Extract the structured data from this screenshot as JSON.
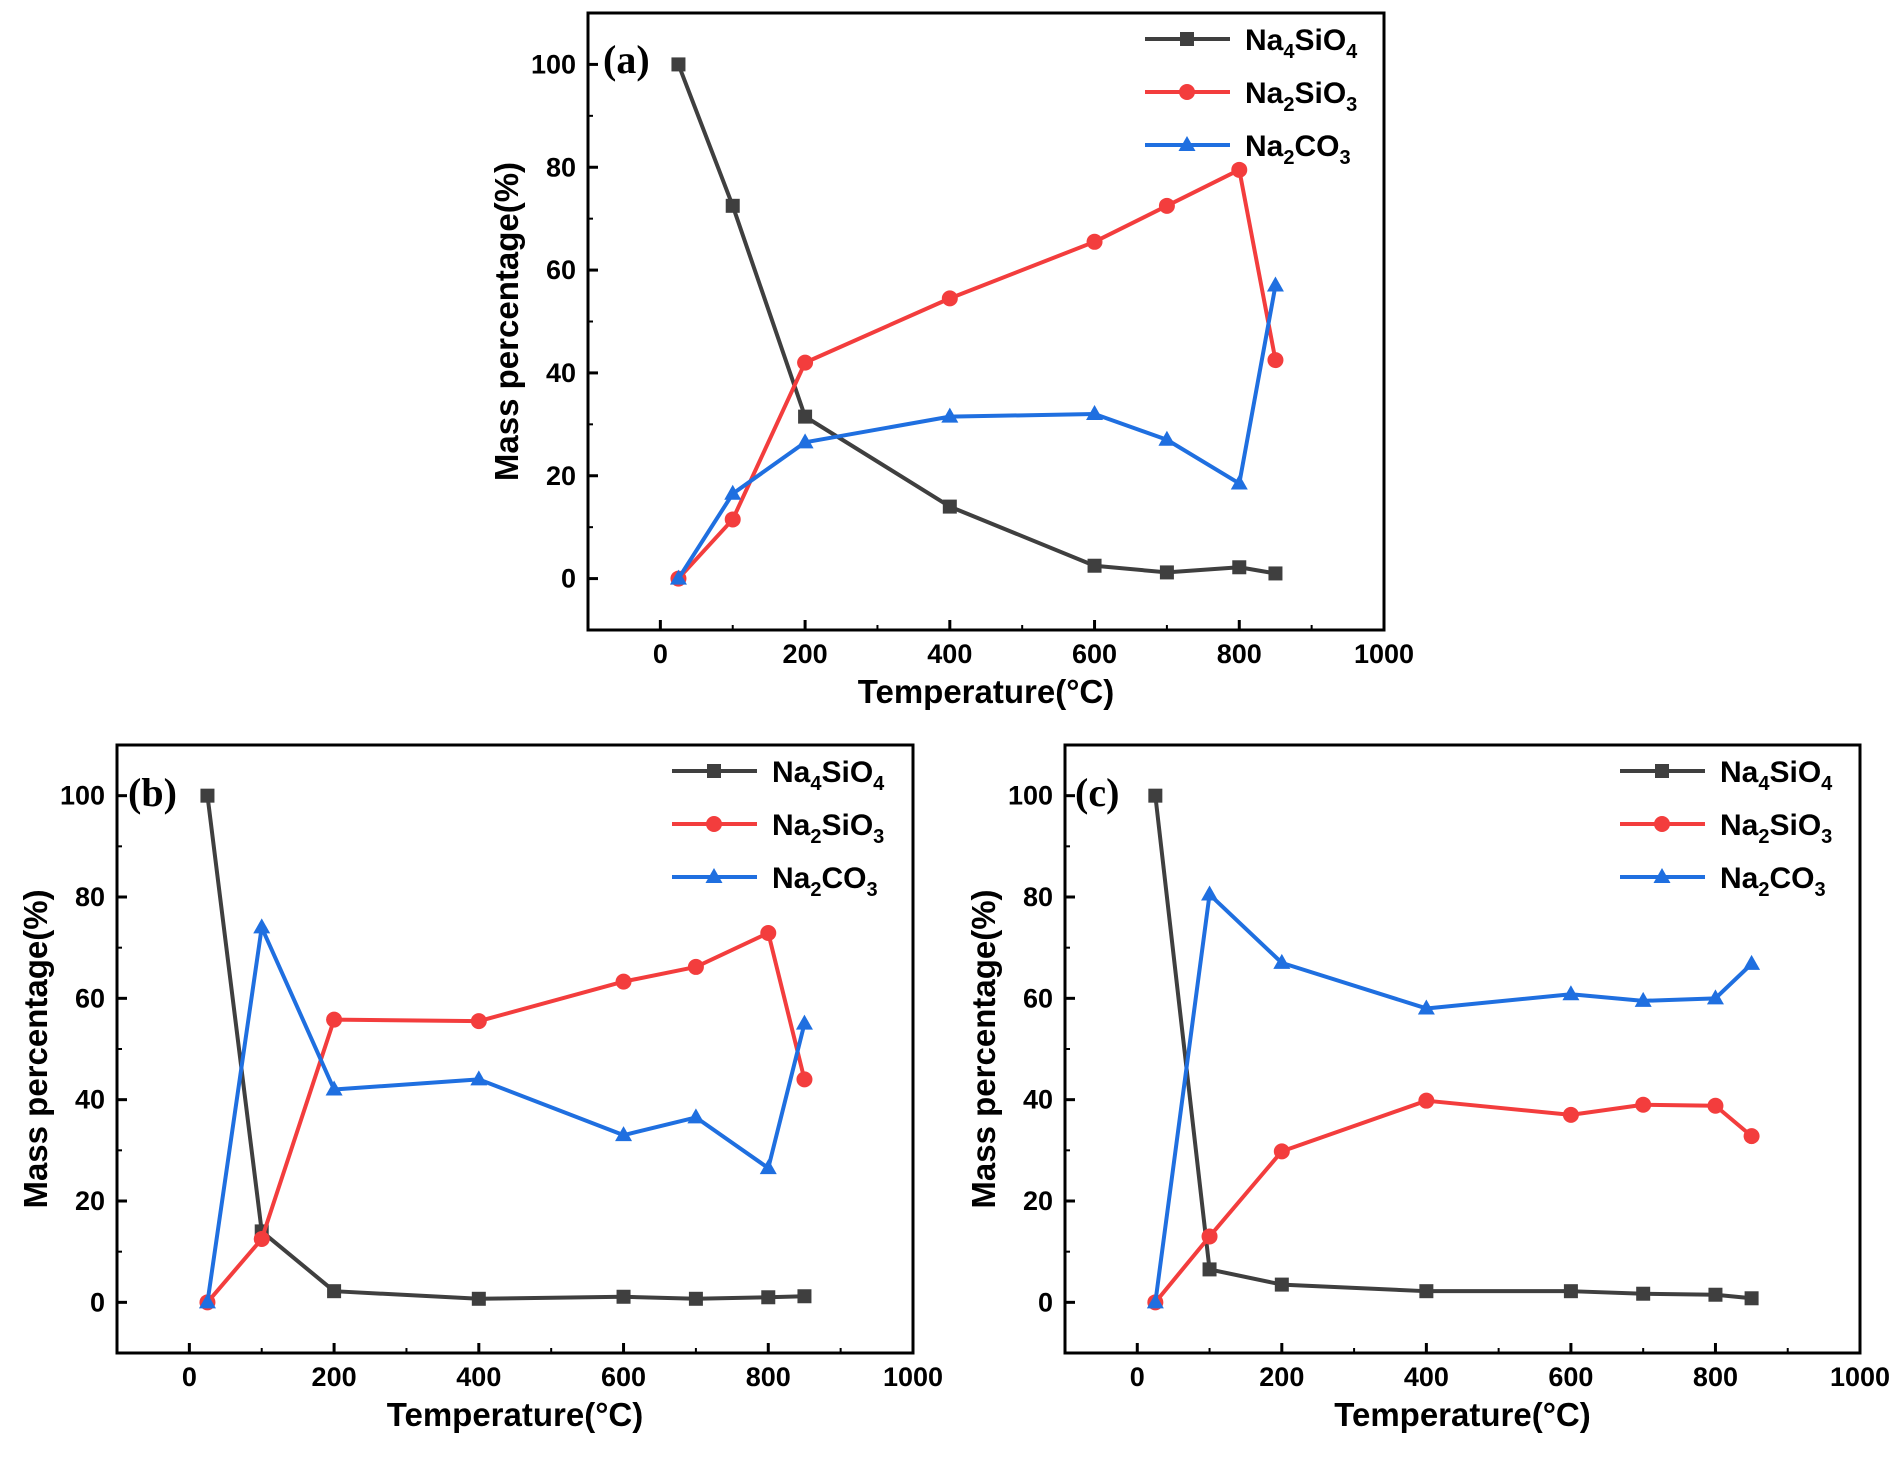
{
  "chart_data": [
    {
      "type": "line",
      "panel": "(a)",
      "xlabel": "Temperature(°C)",
      "ylabel": "Mass percentage(%)",
      "xlim": [
        -100,
        1000
      ],
      "ylim": [
        -10,
        110
      ],
      "xticks": [
        0,
        200,
        400,
        600,
        800,
        1000
      ],
      "yticks": [
        0,
        20,
        40,
        60,
        80,
        100
      ],
      "legend": "top-right",
      "series": [
        {
          "name": "Na4SiO4",
          "sub1": "4",
          "sub2": "4",
          "color": "#3f3f3f",
          "marker": "square",
          "x": [
            25,
            100,
            200,
            400,
            600,
            700,
            800,
            850
          ],
          "y": [
            100,
            72.5,
            31.5,
            14,
            2.5,
            1.2,
            2.2,
            1
          ]
        },
        {
          "name": "Na2SiO3",
          "sub1": "2",
          "sub2": "3",
          "color": "#f33d3d",
          "marker": "circle",
          "x": [
            25,
            100,
            200,
            400,
            600,
            700,
            800,
            850
          ],
          "y": [
            0,
            11.5,
            42,
            54.5,
            65.5,
            72.5,
            79.5,
            42.5
          ]
        },
        {
          "name": "Na2CO3",
          "sub1": "2",
          "sub2": "3",
          "color": "#1f6fe0",
          "marker": "triangle",
          "x": [
            25,
            100,
            200,
            400,
            600,
            700,
            800,
            850
          ],
          "y": [
            0,
            16.5,
            26.5,
            31.5,
            32,
            27,
            18.5,
            57
          ]
        }
      ]
    },
    {
      "type": "line",
      "panel": "(b)",
      "xlabel": "Temperature(°C)",
      "ylabel": "Mass percentage(%)",
      "xlim": [
        -100,
        1000
      ],
      "ylim": [
        -10,
        110
      ],
      "xticks": [
        0,
        200,
        400,
        600,
        800,
        1000
      ],
      "yticks": [
        0,
        20,
        40,
        60,
        80,
        100
      ],
      "legend": "top-right",
      "series": [
        {
          "name": "Na4SiO4",
          "sub1": "4",
          "sub2": "4",
          "color": "#3f3f3f",
          "marker": "square",
          "x": [
            25,
            100,
            200,
            400,
            600,
            700,
            800,
            850
          ],
          "y": [
            100,
            14,
            2.2,
            0.7,
            1.1,
            0.7,
            1,
            1.2
          ]
        },
        {
          "name": "Na2SiO3",
          "sub1": "2",
          "sub2": "3",
          "color": "#f33d3d",
          "marker": "circle",
          "x": [
            25,
            100,
            200,
            400,
            600,
            700,
            800,
            850
          ],
          "y": [
            0,
            12.5,
            55.8,
            55.5,
            63.3,
            66.2,
            72.9,
            44
          ]
        },
        {
          "name": "Na2CO3",
          "sub1": "2",
          "sub2": "3",
          "color": "#1f6fe0",
          "marker": "triangle",
          "x": [
            25,
            100,
            200,
            400,
            600,
            700,
            800,
            850
          ],
          "y": [
            0,
            74,
            42,
            44,
            33,
            36.5,
            26.5,
            55
          ]
        }
      ]
    },
    {
      "type": "line",
      "panel": "(c)",
      "xlabel": "Temperature(°C)",
      "ylabel": "Mass percentage(%)",
      "xlim": [
        -100,
        1000
      ],
      "ylim": [
        -10,
        110
      ],
      "xticks": [
        0,
        200,
        400,
        600,
        800,
        1000
      ],
      "yticks": [
        0,
        20,
        40,
        60,
        80,
        100
      ],
      "legend": "top-right",
      "series": [
        {
          "name": "Na4SiO4",
          "sub1": "4",
          "sub2": "4",
          "color": "#3f3f3f",
          "marker": "square",
          "x": [
            25,
            100,
            200,
            400,
            600,
            700,
            800,
            850
          ],
          "y": [
            100,
            6.5,
            3.5,
            2.2,
            2.2,
            1.7,
            1.5,
            0.8
          ]
        },
        {
          "name": "Na2SiO3",
          "sub1": "2",
          "sub2": "3",
          "color": "#f33d3d",
          "marker": "circle",
          "x": [
            25,
            100,
            200,
            400,
            600,
            700,
            800,
            850
          ],
          "y": [
            0,
            13,
            29.8,
            39.8,
            37,
            39,
            38.8,
            32.8
          ]
        },
        {
          "name": "Na2CO3",
          "sub1": "2",
          "sub2": "3",
          "color": "#1f6fe0",
          "marker": "triangle",
          "x": [
            25,
            100,
            200,
            400,
            600,
            700,
            800,
            850
          ],
          "y": [
            0,
            80.5,
            67,
            58,
            60.8,
            59.5,
            60,
            66.8
          ]
        }
      ]
    }
  ]
}
